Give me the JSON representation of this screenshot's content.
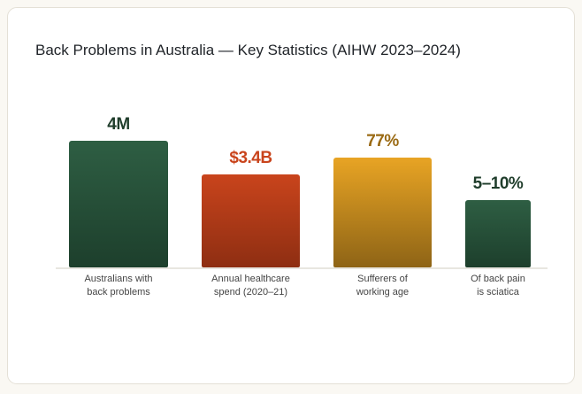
{
  "chart_data": {
    "type": "bar",
    "title": "Back Problems in Australia — Key Statistics (AIHW 2023–2024)",
    "categories": [
      "Australians with back problems",
      "Annual healthcare spend (2020–21)",
      "Sufferers of working age",
      "Of back pain is sciatica"
    ],
    "category_lines": [
      [
        "Australians with",
        "back problems"
      ],
      [
        "Annual healthcare",
        "spend (2020–21)"
      ],
      [
        "Sufferers of",
        "working age"
      ],
      [
        "Of back pain",
        "is sciatica"
      ]
    ],
    "value_labels": [
      "4M",
      "$3.4B",
      "77%",
      "5–10%"
    ],
    "colors": [
      {
        "top": "#2e5e43",
        "bottom": "#1d3f2c",
        "label": "#1f3d2b"
      },
      {
        "top": "#c9441c",
        "bottom": "#8e2e12",
        "label": "#c9441c"
      },
      {
        "top": "#e8a424",
        "bottom": "#8e6416",
        "label": "#9a6a14"
      },
      {
        "top": "#2e5e43",
        "bottom": "#1d3f2c",
        "label": "#1f3d2b"
      }
    ],
    "grid": false,
    "legend": "none"
  }
}
